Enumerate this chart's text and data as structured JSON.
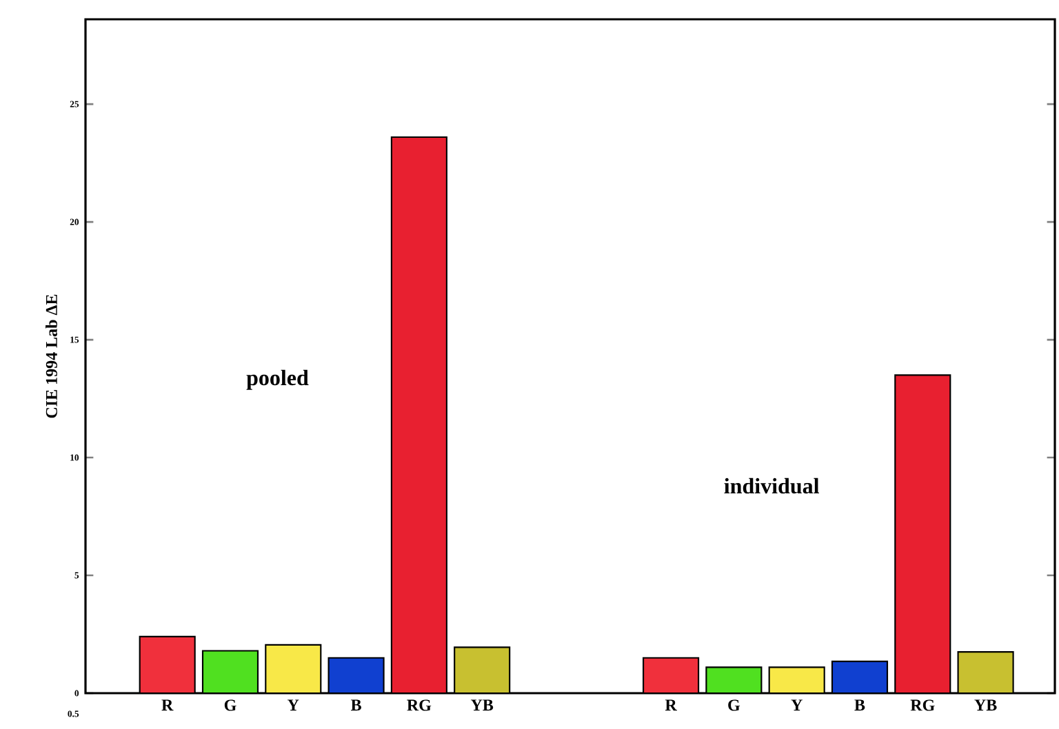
{
  "chart_data": {
    "type": "bar",
    "ylabel": "CIE 1994 Lab ΔE",
    "categories": [
      "R",
      "G",
      "Y",
      "B",
      "RG",
      "YB",
      null,
      null,
      "R",
      "G",
      "Y",
      "B",
      "RG",
      "YB"
    ],
    "values": [
      2.4,
      1.8,
      2.05,
      1.5,
      23.6,
      1.95,
      null,
      null,
      1.5,
      1.1,
      1.1,
      1.35,
      13.5,
      1.75
    ],
    "colors": [
      "#f0303c",
      "#50e020",
      "#f8e848",
      "#1040d0",
      "#e82030",
      "#c8c030",
      null,
      null,
      "#f0303c",
      "#50e020",
      "#f8e848",
      "#1040d0",
      "#e82030",
      "#c8c030"
    ],
    "ylim": [
      0,
      28.6
    ],
    "yticks": [
      0,
      5,
      10,
      15,
      20,
      25
    ],
    "annotations": [
      "pooled",
      "individual",
      "0.5"
    ],
    "grid": false
  }
}
